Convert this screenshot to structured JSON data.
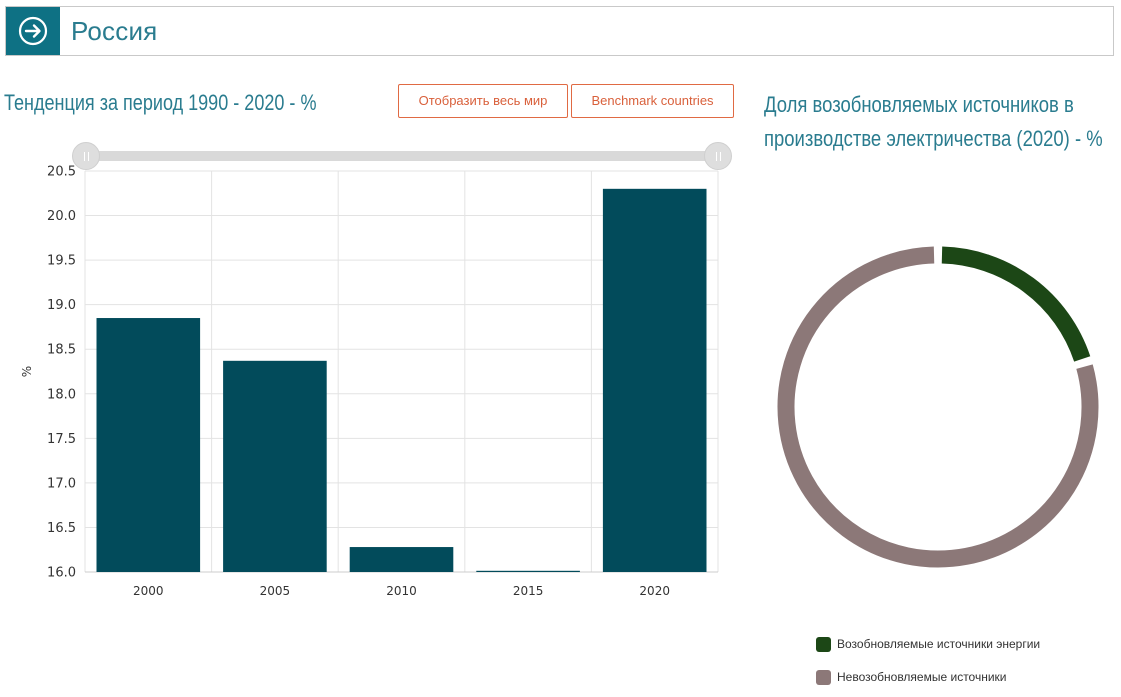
{
  "header": {
    "title": "Россия",
    "icon": "arrow-circle-right"
  },
  "left_panel": {
    "title": "Тенденция за период 1990 - 2020 - %"
  },
  "buttons": {
    "world": "Отобразить весь мир",
    "benchmark": "Benchmark countries"
  },
  "right_panel": {
    "title": "Доля возобновляемых источников в производстве электричества (2020) - %"
  },
  "colors": {
    "accent": "#0e7184",
    "bar": "#024b5b",
    "button": "#e06a43",
    "renewable": "#1c4716",
    "nonrenewable": "#8c7878"
  },
  "chart_data": [
    {
      "type": "bar",
      "title": "Тенденция за период 1990 - 2020 - %",
      "categories": [
        "2000",
        "2005",
        "2010",
        "2015",
        "2020"
      ],
      "values": [
        18.85,
        18.37,
        16.28,
        16.01,
        20.3
      ],
      "ylabel": "%",
      "ylim": [
        16.0,
        20.5
      ],
      "yticks": [
        "16.0",
        "16.5",
        "17.0",
        "17.5",
        "18.0",
        "18.5",
        "19.0",
        "19.5",
        "20.0",
        "20.5"
      ],
      "grid": true
    },
    {
      "type": "pie",
      "title": "Доля возобновляемых источников в производстве электричества (2020) - %",
      "series": [
        {
          "name": "Возобновляемые источники энергии",
          "value": 20.3
        },
        {
          "name": "Невозобновляемые источники",
          "value": 79.7
        }
      ],
      "legend": "bottom"
    }
  ]
}
